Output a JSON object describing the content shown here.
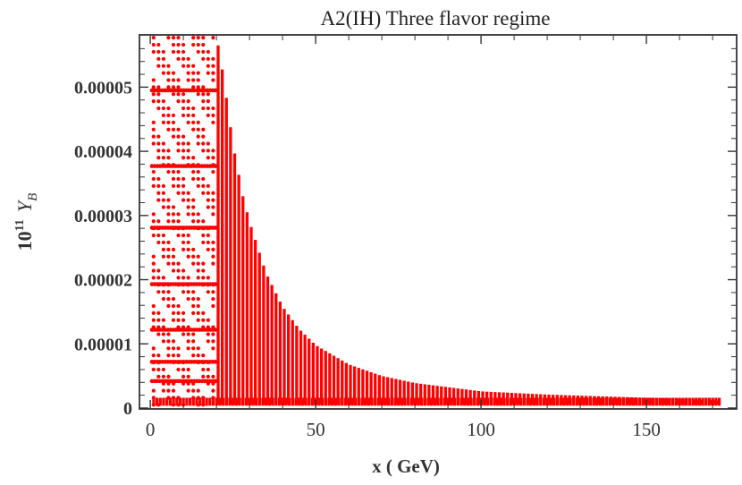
{
  "chart_data": {
    "type": "scatter",
    "title": "A2(IH) Three flavor regime",
    "xlabel": "x ( GeV)",
    "ylabel_base": "10",
    "ylabel_exp": "11",
    "ylabel_var": "Y",
    "ylabel_sub": "B",
    "xlim": [
      -3,
      177
    ],
    "ylim": [
      0,
      5.8e-05
    ],
    "xticks": [
      0,
      50,
      100,
      150
    ],
    "xtick_labels": [
      "0",
      "50",
      "100",
      "150"
    ],
    "yticks": [
      0,
      1e-05,
      2e-05,
      3e-05,
      4e-05,
      5e-05
    ],
    "ytick_labels": [
      "0",
      "0.00001",
      "0.00002",
      "0.00003",
      "0.00004",
      "0.00005"
    ],
    "grid": false,
    "color": "#ff0000",
    "upper_envelope": {
      "x": [
        20,
        22,
        25,
        28,
        30,
        35,
        40,
        45,
        50,
        60,
        70,
        80,
        100,
        120,
        150,
        172
      ],
      "y": [
        5.8e-05,
        5.2e-05,
        4.1e-05,
        3.3e-05,
        2.9e-05,
        2.1e-05,
        1.58e-05,
        1.23e-05,
        9.8e-06,
        6.8e-06,
        5e-06,
        3.9e-06,
        2.6e-06,
        2.1e-06,
        1.6e-06,
        1.2e-06
      ]
    },
    "left_dense_region": {
      "x_range": [
        1,
        20
      ],
      "y_range": [
        5e-07,
        5.8e-05
      ]
    },
    "bottom_edge_y": 5e-07,
    "x_max": 172
  }
}
